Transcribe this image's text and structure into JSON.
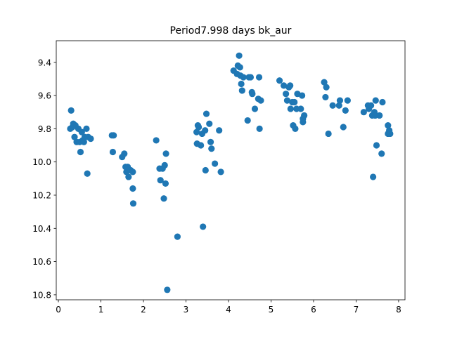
{
  "chart_data": {
    "type": "scatter",
    "title": "Period7.998 days bk_aur",
    "xlabel": "",
    "ylabel": "",
    "xlim": [
      -0.05,
      8.15
    ],
    "ylim": [
      10.83,
      9.27
    ],
    "y_inverted": true,
    "grid": false,
    "xticks": [
      0,
      1,
      2,
      3,
      4,
      5,
      6,
      7,
      8
    ],
    "yticks": [
      9.4,
      9.6,
      9.8,
      10.0,
      10.2,
      10.4,
      10.6,
      10.8
    ],
    "ytick_labels": [
      "9.4",
      "9.6",
      "9.8",
      "10.0",
      "10.2",
      "10.4",
      "10.6",
      "10.8"
    ],
    "point_color": "#1f77b4",
    "points": [
      [
        0.28,
        9.8
      ],
      [
        0.3,
        9.69
      ],
      [
        0.33,
        9.79
      ],
      [
        0.35,
        9.77
      ],
      [
        0.38,
        9.85
      ],
      [
        0.4,
        9.78
      ],
      [
        0.43,
        9.88
      ],
      [
        0.47,
        9.8
      ],
      [
        0.5,
        9.88
      ],
      [
        0.52,
        9.94
      ],
      [
        0.55,
        9.82
      ],
      [
        0.57,
        9.87
      ],
      [
        0.6,
        9.88
      ],
      [
        0.62,
        9.85
      ],
      [
        0.66,
        9.8
      ],
      [
        0.68,
        10.07
      ],
      [
        0.7,
        9.85
      ],
      [
        0.76,
        9.86
      ],
      [
        1.26,
        9.84
      ],
      [
        1.28,
        9.94
      ],
      [
        1.3,
        9.84
      ],
      [
        1.5,
        9.97
      ],
      [
        1.55,
        9.95
      ],
      [
        1.58,
        10.03
      ],
      [
        1.6,
        10.06
      ],
      [
        1.63,
        10.03
      ],
      [
        1.65,
        10.09
      ],
      [
        1.7,
        10.05
      ],
      [
        1.75,
        10.06
      ],
      [
        1.75,
        10.16
      ],
      [
        1.76,
        10.25
      ],
      [
        2.3,
        9.87
      ],
      [
        2.38,
        10.04
      ],
      [
        2.4,
        10.11
      ],
      [
        2.45,
        10.04
      ],
      [
        2.48,
        10.22
      ],
      [
        2.5,
        10.02
      ],
      [
        2.52,
        10.13
      ],
      [
        2.53,
        9.95
      ],
      [
        2.56,
        10.77
      ],
      [
        2.8,
        10.45
      ],
      [
        3.25,
        9.82
      ],
      [
        3.26,
        9.89
      ],
      [
        3.28,
        9.78
      ],
      [
        3.3,
        9.79
      ],
      [
        3.35,
        9.9
      ],
      [
        3.38,
        9.83
      ],
      [
        3.4,
        10.39
      ],
      [
        3.45,
        9.81
      ],
      [
        3.46,
        10.05
      ],
      [
        3.48,
        9.71
      ],
      [
        3.55,
        9.77
      ],
      [
        3.58,
        9.88
      ],
      [
        3.6,
        9.92
      ],
      [
        3.68,
        10.01
      ],
      [
        3.78,
        9.81
      ],
      [
        3.82,
        10.06
      ],
      [
        4.12,
        9.45
      ],
      [
        4.2,
        9.47
      ],
      [
        4.22,
        9.42
      ],
      [
        4.25,
        9.36
      ],
      [
        4.27,
        9.43
      ],
      [
        4.28,
        9.48
      ],
      [
        4.3,
        9.53
      ],
      [
        4.32,
        9.57
      ],
      [
        4.35,
        9.49
      ],
      [
        4.45,
        9.75
      ],
      [
        4.48,
        9.49
      ],
      [
        4.52,
        9.49
      ],
      [
        4.55,
        9.58
      ],
      [
        4.56,
        9.59
      ],
      [
        4.62,
        9.68
      ],
      [
        4.7,
        9.62
      ],
      [
        4.72,
        9.49
      ],
      [
        4.73,
        9.8
      ],
      [
        4.76,
        9.63
      ],
      [
        5.2,
        9.51
      ],
      [
        5.3,
        9.54
      ],
      [
        5.35,
        9.59
      ],
      [
        5.38,
        9.63
      ],
      [
        5.42,
        9.55
      ],
      [
        5.45,
        9.54
      ],
      [
        5.46,
        9.68
      ],
      [
        5.5,
        9.64
      ],
      [
        5.52,
        9.78
      ],
      [
        5.55,
        9.64
      ],
      [
        5.57,
        9.8
      ],
      [
        5.6,
        9.68
      ],
      [
        5.62,
        9.59
      ],
      [
        5.7,
        9.68
      ],
      [
        5.73,
        9.6
      ],
      [
        5.75,
        9.74
      ],
      [
        5.75,
        9.76
      ],
      [
        5.78,
        9.72
      ],
      [
        6.25,
        9.52
      ],
      [
        6.28,
        9.61
      ],
      [
        6.3,
        9.55
      ],
      [
        6.35,
        9.83
      ],
      [
        6.45,
        9.66
      ],
      [
        6.6,
        9.66
      ],
      [
        6.62,
        9.63
      ],
      [
        6.7,
        9.79
      ],
      [
        6.75,
        9.69
      ],
      [
        6.8,
        9.63
      ],
      [
        7.18,
        9.7
      ],
      [
        7.28,
        9.66
      ],
      [
        7.3,
        9.68
      ],
      [
        7.35,
        9.66
      ],
      [
        7.38,
        9.72
      ],
      [
        7.4,
        10.09
      ],
      [
        7.43,
        9.7
      ],
      [
        7.45,
        9.72
      ],
      [
        7.46,
        9.63
      ],
      [
        7.48,
        9.9
      ],
      [
        7.55,
        9.72
      ],
      [
        7.6,
        9.95
      ],
      [
        7.62,
        9.64
      ],
      [
        7.75,
        9.83
      ],
      [
        7.75,
        9.78
      ],
      [
        7.78,
        9.81
      ],
      [
        7.8,
        9.83
      ]
    ]
  }
}
